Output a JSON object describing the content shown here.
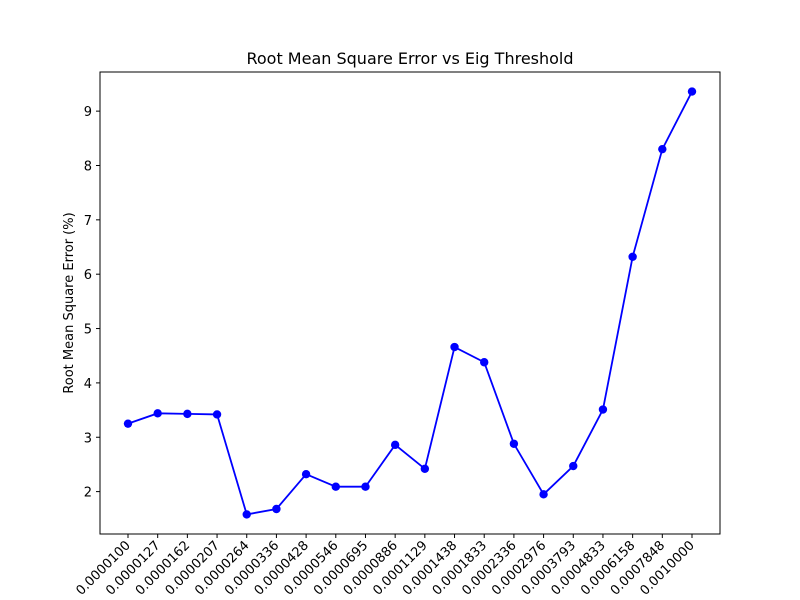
{
  "chart_data": {
    "type": "line",
    "title": "Root Mean Square Error vs Eig Threshold",
    "xlabel": "",
    "ylabel": "Root Mean Square Error (%)",
    "categories": [
      "0.0000100",
      "0.0000127",
      "0.0000162",
      "0.0000207",
      "0.0000264",
      "0.0000336",
      "0.0000428",
      "0.0000546",
      "0.0000695",
      "0.0000886",
      "0.0001129",
      "0.0001438",
      "0.0001833",
      "0.0002336",
      "0.0002976",
      "0.0003793",
      "0.0004833",
      "0.0006158",
      "0.0007848",
      "0.0010000"
    ],
    "values": [
      3.25,
      3.44,
      3.43,
      3.42,
      1.58,
      1.68,
      2.32,
      2.09,
      2.09,
      2.86,
      2.42,
      4.66,
      4.38,
      2.88,
      1.95,
      2.47,
      3.51,
      6.32,
      8.3,
      9.36
    ],
    "ylim": [
      1.22,
      9.72
    ],
    "yticks": [
      2,
      3,
      4,
      5,
      6,
      7,
      8,
      9
    ],
    "grid": false,
    "color": "#0000ff"
  }
}
